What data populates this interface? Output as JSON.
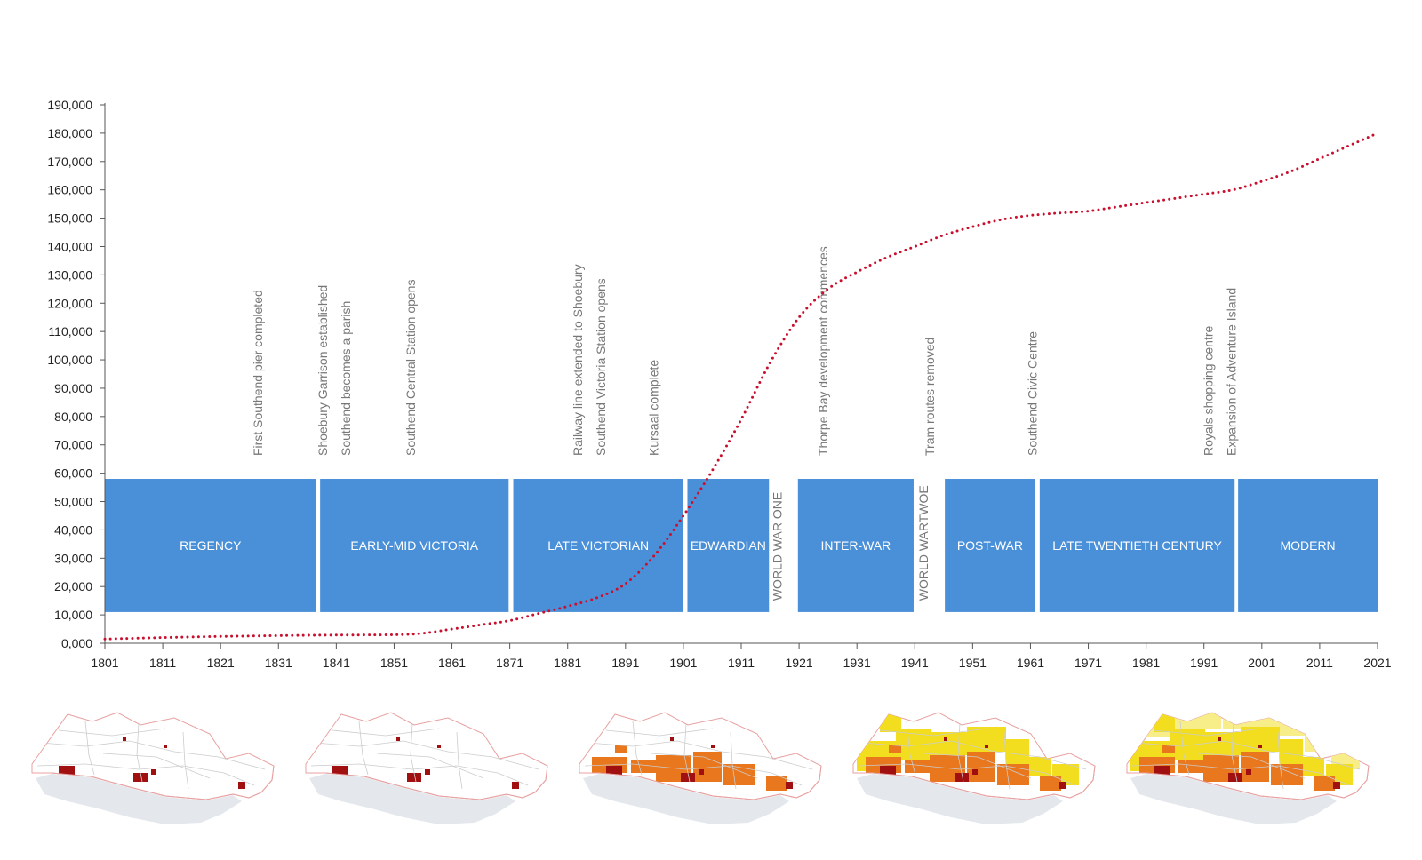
{
  "chart_data": {
    "type": "line",
    "x_ticks": [
      "1801",
      "1811",
      "1821",
      "1831",
      "1841",
      "1851",
      "1861",
      "1871",
      "1881",
      "1891",
      "1901",
      "1911",
      "1921",
      "1931",
      "1941",
      "1951",
      "1961",
      "1971",
      "1981",
      "1991",
      "2001",
      "2011",
      "2021"
    ],
    "y_ticks": [
      "0,000",
      "10,000",
      "20,000",
      "30,000",
      "40,000",
      "50,000",
      "60,000",
      "70,000",
      "80,000",
      "90,000",
      "100,000",
      "110,000",
      "120,000",
      "130,000",
      "140,000",
      "150,000",
      "160,000",
      "170,000",
      "180,000",
      "190,000"
    ],
    "xlim": [
      1801,
      2021
    ],
    "ylim": [
      0,
      190000
    ],
    "grid": false,
    "series": [
      {
        "line_style": "dotted",
        "color": "#c8102e",
        "x": [
          1801,
          1811,
          1821,
          1831,
          1841,
          1851,
          1856,
          1861,
          1866,
          1871,
          1876,
          1881,
          1886,
          1891,
          1896,
          1901,
          1906,
          1911,
          1916,
          1921,
          1926,
          1931,
          1936,
          1941,
          1946,
          1951,
          1956,
          1961,
          1966,
          1971,
          1976,
          1981,
          1986,
          1991,
          1996,
          2001,
          2006,
          2011,
          2016,
          2021
        ],
        "values": [
          1500,
          2000,
          2400,
          2700,
          2900,
          3000,
          3500,
          5000,
          6500,
          8000,
          10500,
          13000,
          16000,
          21000,
          31000,
          45000,
          61000,
          79000,
          99000,
          115000,
          125000,
          131000,
          136000,
          140000,
          144000,
          147000,
          149500,
          151000,
          151800,
          152500,
          154000,
          155500,
          157000,
          158500,
          160000,
          163000,
          166500,
          171000,
          175500,
          180000
        ]
      }
    ],
    "eras": [
      {
        "label": "REGENCY",
        "start": 1801,
        "end": 1837.5
      },
      {
        "label": "EARLY-MID VICTORIA",
        "start": 1838.2,
        "end": 1870.8
      },
      {
        "label": "LATE VICTORIAN",
        "start": 1871.6,
        "end": 1901
      },
      {
        "label": "EDWARDIAN",
        "start": 1901.7,
        "end": 1915.8
      },
      {
        "label": "INTER-WAR",
        "start": 1920.8,
        "end": 1940.8
      },
      {
        "label": "POST-WAR",
        "start": 1946.2,
        "end": 1961.8
      },
      {
        "label": "LATE TWENTIETH CENTURY",
        "start": 1962.6,
        "end": 1996.3
      },
      {
        "label": "MODERN",
        "start": 1996.9,
        "end": 2021
      }
    ],
    "wars": [
      {
        "label": "WORLD WAR ONE",
        "x": 1918
      },
      {
        "label": "WORLD WARTWOE",
        "x": 1943.3
      }
    ],
    "annotations": [
      {
        "x": 1828.2,
        "lines": [
          "First Southend pier completed"
        ]
      },
      {
        "x": 1839.4,
        "lines": [
          "Shoebury Garrison established",
          "Southend becomes a parish"
        ]
      },
      {
        "x": 1854.6,
        "lines": [
          "Southend Central Station opens"
        ]
      },
      {
        "x": 1883.5,
        "lines": [
          "Railway line extended to Shoebury",
          "Southend Victoria Station opens"
        ]
      },
      {
        "x": 1896.6,
        "lines": [
          "Kursaal complete"
        ]
      },
      {
        "x": 1925.9,
        "lines": [
          "Thorpe Bay development commences"
        ]
      },
      {
        "x": 1944.3,
        "lines": [
          "Tram routes removed"
        ]
      },
      {
        "x": 1962.1,
        "lines": [
          "Southend Civic Centre"
        ]
      },
      {
        "x": 1992.5,
        "lines": [
          "Royals shopping centre",
          "Expansion of Adventure Island"
        ]
      }
    ]
  },
  "colors": {
    "era_block": "#4a90d9",
    "line": "#c8102e",
    "axis": "#555555",
    "map_land_outline": "#e8a0a0",
    "map_sea": "#e4e8ec",
    "map_roads": "#cccccc",
    "map_dark_red": "#a01010",
    "map_orange": "#e8771d",
    "map_yellow": "#f2de1e",
    "map_pale_yellow": "#f7ee8a"
  },
  "maps": [
    {
      "stage": "regency",
      "layers": [
        "dark-red"
      ]
    },
    {
      "stage": "victorian",
      "layers": [
        "dark-red"
      ]
    },
    {
      "stage": "edwardian",
      "layers": [
        "dark-red",
        "orange"
      ]
    },
    {
      "stage": "post-war",
      "layers": [
        "dark-red",
        "orange",
        "yellow"
      ]
    },
    {
      "stage": "modern",
      "layers": [
        "dark-red",
        "orange",
        "yellow",
        "pale-yellow"
      ]
    }
  ]
}
